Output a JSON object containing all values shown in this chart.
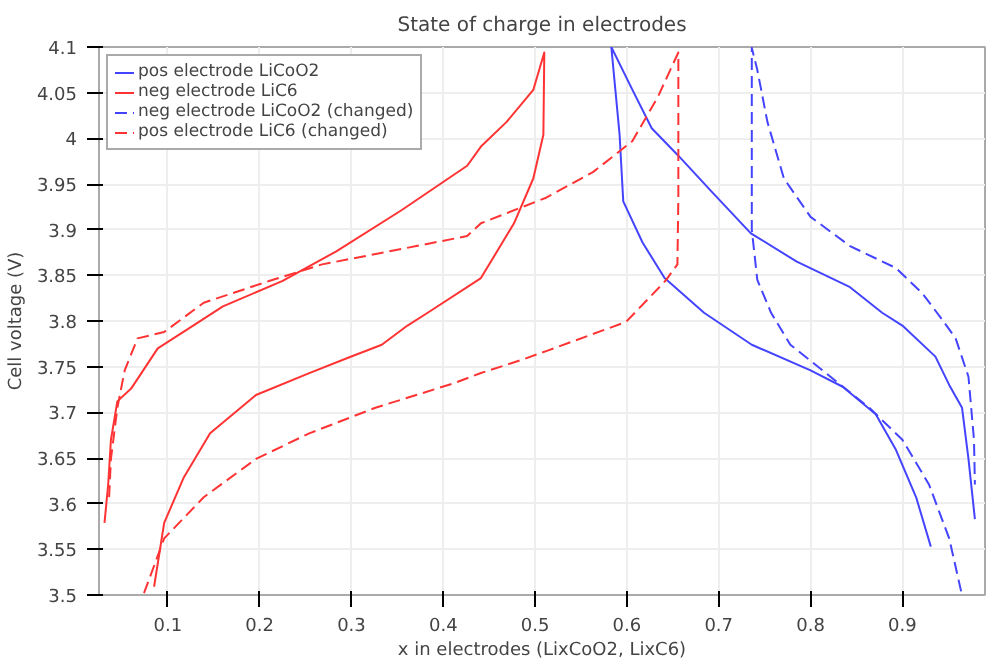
{
  "chart_data": {
    "type": "line",
    "title": "State of charge in electrodes",
    "xlabel": "x in electrodes (LixCoO2, LixC6)",
    "ylabel": "Cell voltage (V)",
    "xlim": [
      0.025,
      0.99
    ],
    "ylim": [
      3.5,
      4.1
    ],
    "xticks": [
      0.1,
      0.2,
      0.3,
      0.4,
      0.5,
      0.6,
      0.7,
      0.8,
      0.9
    ],
    "yticks": [
      3.5,
      3.55,
      3.6,
      3.65,
      3.7,
      3.75,
      3.8,
      3.85,
      3.9,
      3.95,
      4,
      4.05,
      4.1
    ],
    "grid": true,
    "legend": "top left",
    "marker": "none",
    "series": [
      {
        "name": "pos electrode LiCoO2",
        "color": "#4444ff",
        "line_style": "solid",
        "x": [
          0.931,
          0.915,
          0.893,
          0.871,
          0.835,
          0.8,
          0.736,
          0.684,
          0.641,
          0.617,
          0.596,
          0.592,
          0.583,
          0.606,
          0.627,
          0.656,
          0.692,
          0.735,
          0.785,
          0.843,
          0.878,
          0.9,
          0.936,
          0.951,
          0.965,
          0.972,
          0.979
        ],
        "values": [
          3.553,
          3.607,
          3.659,
          3.698,
          3.728,
          3.746,
          3.774,
          3.809,
          3.847,
          3.886,
          3.931,
          4.004,
          4.1,
          4.053,
          4.011,
          3.981,
          3.942,
          3.896,
          3.865,
          3.837,
          3.809,
          3.795,
          3.761,
          3.73,
          3.705,
          3.649,
          3.583
        ]
      },
      {
        "name": "neg electrode LiC6",
        "color": "#ff3333",
        "line_style": "solid",
        "x": [
          0.085,
          0.096,
          0.117,
          0.146,
          0.196,
          0.254,
          0.297,
          0.333,
          0.361,
          0.383,
          0.441,
          0.477,
          0.498,
          0.509,
          0.51,
          0.498,
          0.469,
          0.441,
          0.426,
          0.354,
          0.283,
          0.225,
          0.16,
          0.117,
          0.089,
          0.06,
          0.045,
          0.038,
          0.035,
          0.031
        ],
        "values": [
          3.509,
          3.579,
          3.628,
          3.677,
          3.719,
          3.743,
          3.76,
          3.774,
          3.795,
          3.809,
          3.847,
          3.907,
          3.956,
          4.004,
          4.094,
          4.053,
          4.018,
          3.991,
          3.97,
          3.921,
          3.876,
          3.844,
          3.816,
          3.788,
          3.77,
          3.726,
          3.712,
          3.67,
          3.621,
          3.579
        ]
      },
      {
        "name": "neg electrode LiCoO2 (changed)",
        "color": "#4444ff",
        "line_style": "dashed",
        "x": [
          0.964,
          0.951,
          0.929,
          0.9,
          0.864,
          0.813,
          0.778,
          0.757,
          0.742,
          0.736,
          0.736,
          0.736,
          0.742,
          0.753,
          0.771,
          0.8,
          0.843,
          0.893,
          0.922,
          0.943,
          0.958,
          0.972,
          0.978,
          0.979
        ],
        "values": [
          3.504,
          3.562,
          3.621,
          3.67,
          3.705,
          3.746,
          3.774,
          3.809,
          3.845,
          3.9,
          4.004,
          4.099,
          4.075,
          4.018,
          3.956,
          3.914,
          3.882,
          3.858,
          3.83,
          3.802,
          3.781,
          3.739,
          3.67,
          3.621
        ]
      },
      {
        "name": "pos electrode LiC6 (changed)",
        "color": "#ff3333",
        "line_style": "dashed",
        "x": [
          0.074,
          0.096,
          0.139,
          0.196,
          0.254,
          0.326,
          0.412,
          0.441,
          0.484,
          0.512,
          0.599,
          0.642,
          0.655,
          0.656,
          0.656,
          0.634,
          0.606,
          0.563,
          0.512,
          0.441,
          0.426,
          0.34,
          0.268,
          0.211,
          0.139,
          0.096,
          0.067,
          0.053,
          0.045,
          0.038,
          0.036
        ],
        "values": [
          3.502,
          3.562,
          3.607,
          3.649,
          3.677,
          3.705,
          3.732,
          3.743,
          3.757,
          3.767,
          3.799,
          3.844,
          3.862,
          3.935,
          4.094,
          4.046,
          3.997,
          3.963,
          3.935,
          3.907,
          3.893,
          3.876,
          3.862,
          3.844,
          3.82,
          3.788,
          3.781,
          3.746,
          3.705,
          3.649,
          3.607
        ]
      }
    ]
  }
}
